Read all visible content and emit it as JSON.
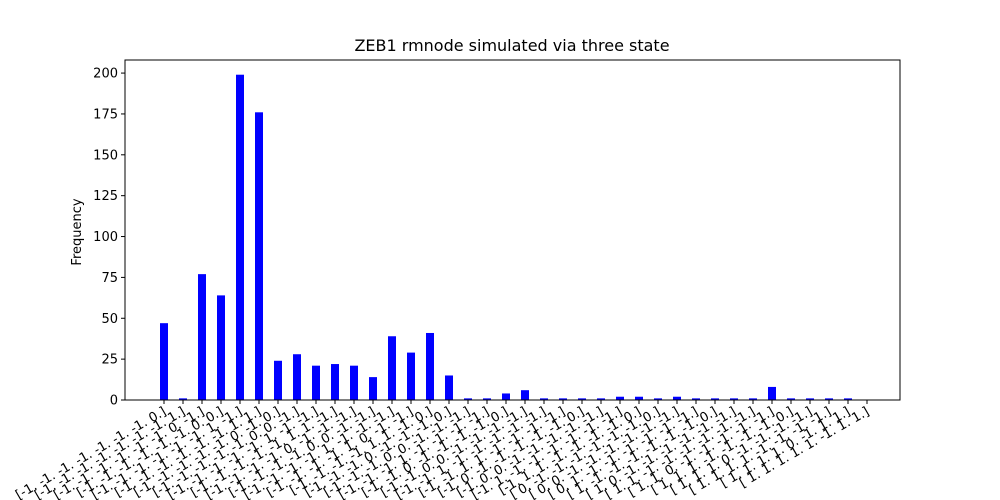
{
  "chart_data": {
    "type": "bar",
    "title": "ZEB1 rmnode simulated via three state",
    "xlabel": "",
    "ylabel": "Frequency",
    "ylim": [
      0,
      208
    ],
    "yticks": [
      0,
      25,
      50,
      75,
      100,
      125,
      150,
      175,
      200
    ],
    "grid": false,
    "bar_color": "#0000ff",
    "categories": [
      "[-1. -1. -1. -1. -1. -1. -1.  0.]",
      "[-1. -1. -1. -1. -1. -1. -1.  1.]",
      "[-1. -1. -1. -1. -1. -1.  0. -1.]",
      "[-1. -1. -1. -1. -1. -1.  0.  0.]",
      "[-1. -1. -1. -1. -1. -1.  1. -1.]",
      "[-1. -1. -1. -1. -1. -1.  1.  1.]",
      "[-1. -1. -1. -1. -1.  0. -1.  0.]",
      "[-1. -1. -1. -1. -1.  0.  0. -1.]",
      "[-1. -1. -1. -1. -1.  1. -1. -1.]",
      "[-1. -1. -1. -1. -1.  1.  1. -1.]",
      "[-1. -1. -1. -1.  0. -1. -1. -1.]",
      "[-1. -1. -1. -1.  0.  0. -1. -1.]",
      "[-1. -1. -1. -1.  1. -1. -1. -1.]",
      "[-1. -1. -1. -1.  1.  0. -1. -1.]",
      "[-1. -1. -1. -1.  1.  1. -1.  0.]",
      "[-1. -1. -1.  0. -1. -1. -1.  0.]",
      "[-1. -1. -1.  0.  0. -1. -1. -1.]",
      "[-1. -1. -1.  1. -1. -1. -1. -1.]",
      "[-1. -1.  0. -1. -1. -1. -1.  0.]",
      "[-1. -1.  0.  0. -1. -1. -1. -1.]",
      "[-1. -1.  1. -1. -1. -1. -1. -1.]",
      "[-1. -1.  1.  1. -1. -1. -1. -1.]",
      "[-1.  0. -1. -1. -1. -1. -1.  0.]",
      "[-1.  0.  0. -1. -1. -1. -1. -1.]",
      "[-1.  1. -1. -1. -1. -1. -1. -1.]",
      "[-1.  1.  1. -1. -1. -1. -1.  0.]",
      "[ 0. -1. -1. -1. -1. -1. -1.  0.]",
      "[ 0.  0. -1. -1. -1. -1. -1. -1.]",
      "[ 0.  1. -1. -1. -1. -1. -1. -1.]",
      "[ 1. -1. -1. -1. -1. -1. -1.  0.]",
      "[ 1.  0. -1. -1. -1. -1. -1. -1.]",
      "[ 1.  1. -1. -1. -1. -1. -1. -1.]",
      "[ 1.  1.  0. -1. -1. -1. -1. -1.]",
      "[ 1.  1.  1. -1. -1. -1. -1.  0.]",
      "[ 1.  1.  1.  0. -1. -1. -1. -1.]",
      "[ 1.  1.  1.  1. -1. -1. -1. -1.]",
      "[ 1.  1.  1.  1.  0. -1.  1.  1.]",
      "[ 1.  1.  1.  1.  1. -1.  1.  1.]"
    ],
    "values": [
      47,
      1,
      77,
      64,
      199,
      176,
      24,
      28,
      21,
      22,
      21,
      14,
      39,
      29,
      41,
      15,
      1,
      1,
      4,
      6,
      1,
      1,
      1,
      1,
      2,
      2,
      1,
      2,
      1,
      1,
      1,
      1,
      8,
      1,
      1,
      1,
      1,
      0
    ]
  }
}
